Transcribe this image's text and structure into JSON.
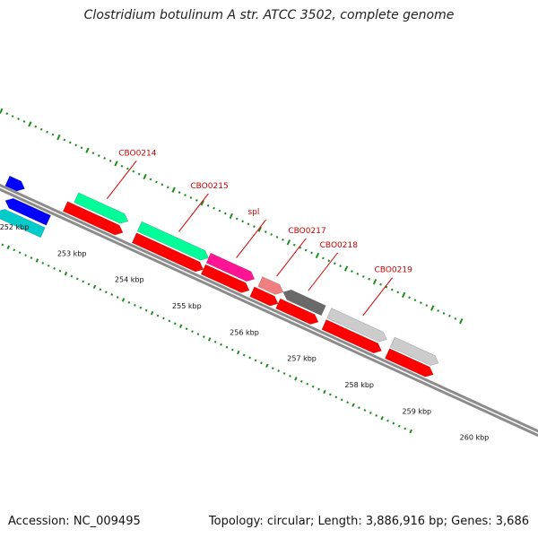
{
  "map": {
    "title": "Clostridium botulinum A str. ATCC 3502, complete genome",
    "accession": "Accession: NC_009495",
    "summary": "Topology: circular; Length: 3,886,916 bp; Genes: 3,686"
  },
  "colors": {
    "backbone": "#8c8c8c",
    "ruler_ticks": "#1e8c1e",
    "gene_label": "#cc0000"
  },
  "scale": {
    "unit": "kbp",
    "labels": [
      "252 kbp",
      "253 kbp",
      "254 kbp",
      "255 kbp",
      "256 kbp",
      "257 kbp",
      "258 kbp",
      "259 kbp",
      "260 kbp"
    ]
  },
  "gene_labels": [
    "CBO0214",
    "CBO0215",
    "spl",
    "CBO0217",
    "CBO0218",
    "CBO0219"
  ],
  "features": [
    {
      "track": "outer",
      "strand": "+",
      "color": "#0000ff",
      "start_kbp": 251.55,
      "end_kbp": 251.85
    },
    {
      "track": "outer",
      "strand": "+",
      "color": "#00ff99",
      "start_kbp": 252.65,
      "end_kbp": 253.55,
      "label": "CBO0214"
    },
    {
      "track": "outer",
      "strand": "+",
      "color": "#00ff99",
      "start_kbp": 253.75,
      "end_kbp": 254.95,
      "label": "CBO0215"
    },
    {
      "track": "outer",
      "strand": "+",
      "color": "#ff1493",
      "start_kbp": 254.95,
      "end_kbp": 255.75,
      "label": "spl"
    },
    {
      "track": "outer",
      "strand": "+",
      "color": "#f08080",
      "start_kbp": 255.85,
      "end_kbp": 256.25,
      "label": "CBO0217"
    },
    {
      "track": "outer",
      "strand": "-",
      "color": "#696969",
      "start_kbp": 256.25,
      "end_kbp": 256.95,
      "label": "CBO0218"
    },
    {
      "track": "outer",
      "strand": "+",
      "color": "#cccccc",
      "start_kbp": 257.05,
      "end_kbp": 258.05,
      "label": "CBO0219"
    },
    {
      "track": "outer",
      "strand": "+",
      "color": "#cccccc",
      "start_kbp": 258.15,
      "end_kbp": 258.95
    },
    {
      "track": "inner",
      "strand": "-",
      "color": "#0000ff",
      "start_kbp": 251.65,
      "end_kbp": 252.4
    },
    {
      "track": "inner",
      "strand": "-",
      "color": "#00cccc",
      "start_kbp": 251.6,
      "end_kbp": 252.4
    },
    {
      "track": "inner",
      "strand": "+",
      "color": "#ff0000",
      "start_kbp": 252.55,
      "end_kbp": 253.55
    },
    {
      "track": "inner",
      "strand": "+",
      "color": "#ff0000",
      "start_kbp": 253.75,
      "end_kbp": 254.95
    },
    {
      "track": "inner",
      "strand": "+",
      "color": "#ff0000",
      "start_kbp": 254.95,
      "end_kbp": 255.75
    },
    {
      "track": "inner",
      "strand": "+",
      "color": "#ff0000",
      "start_kbp": 255.8,
      "end_kbp": 256.25
    },
    {
      "track": "inner",
      "strand": "+",
      "color": "#ff0000",
      "start_kbp": 256.25,
      "end_kbp": 256.95
    },
    {
      "track": "inner",
      "strand": "+",
      "color": "#ff0000",
      "start_kbp": 257.05,
      "end_kbp": 258.05
    },
    {
      "track": "inner",
      "strand": "+",
      "color": "#ff0000",
      "start_kbp": 258.15,
      "end_kbp": 258.95
    }
  ]
}
